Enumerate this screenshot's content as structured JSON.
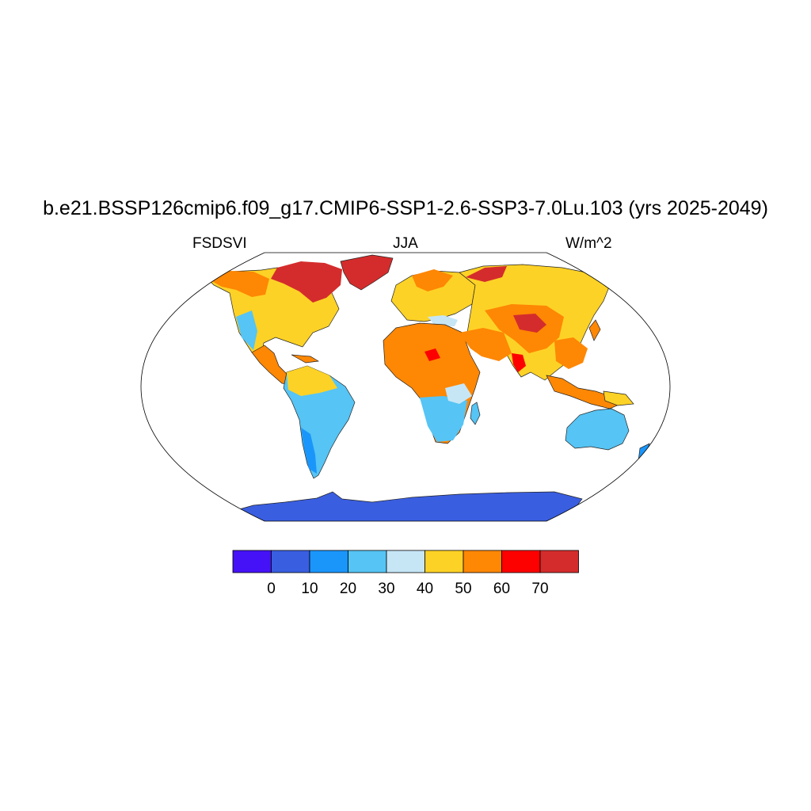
{
  "title": "b.e21.BSSP126cmip6.f09_g17.CMIP6-SSP1-2.6-SSP3-7.0Lu.103 (yrs 2025-2049)",
  "left_label": "FSDSVI",
  "center_label": "JJA",
  "right_label": "W/m^2",
  "colors": {
    "lt0": "#4512f7",
    "c0_10": "#3a5ee0",
    "c10_20": "#1a96fb",
    "c20_30": "#56c4f4",
    "c30_40": "#c6e6f6",
    "c40_50": "#fdd226",
    "c50_60": "#fe8704",
    "c60_70": "#fd0000",
    "gt70": "#d42c2c"
  },
  "colorbar": {
    "ticks": [
      "0",
      "10",
      "20",
      "30",
      "40",
      "50",
      "60",
      "70"
    ],
    "bins": [
      "lt0",
      "c0_10",
      "c10_20",
      "c20_30",
      "c30_40",
      "c40_50",
      "c50_60",
      "c60_70",
      "gt70"
    ]
  },
  "map": {
    "projection": "Robinson",
    "season": "JJA"
  }
}
